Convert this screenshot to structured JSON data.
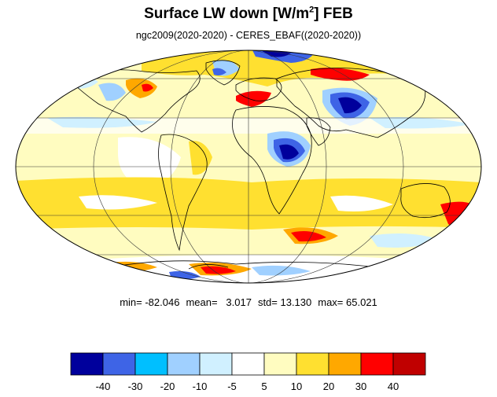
{
  "title": {
    "main": "Surface LW down [W/m",
    "superscript": "2",
    "suffix": "]  FEB"
  },
  "subtitle": "ngc2009(2020-2020) - CERES_EBAF((2020-2020))",
  "stats": {
    "min": "min= -82.046",
    "mean": "mean=   3.017",
    "std": "std= 13.130",
    "max": "max= 65.021"
  },
  "colorbar": {
    "colors": [
      "#00009c",
      "#3e64e6",
      "#00bfff",
      "#a0d0ff",
      "#d0f0ff",
      "#ffffff",
      "#fffcc0",
      "#ffe030",
      "#ffa800",
      "#ff0000",
      "#c00000"
    ],
    "labels": [
      "-40",
      "-30",
      "-20",
      "-10",
      "-5",
      "5",
      "10",
      "20",
      "30",
      "40"
    ]
  },
  "map": {
    "projection": "Mollweide",
    "background_color": "#fffcc0"
  }
}
